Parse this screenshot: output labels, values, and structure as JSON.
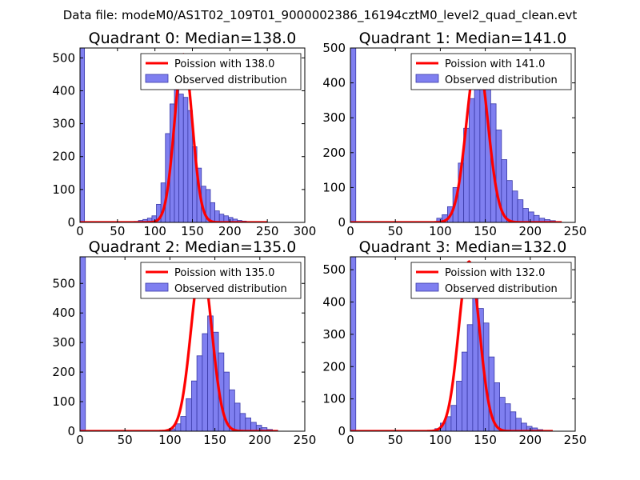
{
  "figure": {
    "suptitle": "Data file: modeM0/AS1T02_109T01_9000002386_16194cztM0_level2_quad_clean.evt"
  },
  "colors": {
    "bar_fill": "#7f7ff0",
    "bar_edge": "#3a3aa8",
    "fit_line": "#ff0000",
    "axes": "#000000"
  },
  "chart_data": [
    {
      "type": "bar",
      "title": "Quadrant 0: Median=138.0",
      "xlim": [
        0,
        300
      ],
      "ylim": [
        0,
        530
      ],
      "xticks": [
        0,
        50,
        100,
        150,
        200,
        250,
        300
      ],
      "yticks": [
        0,
        100,
        200,
        300,
        400,
        500
      ],
      "bin_width": 6,
      "bins": [
        [
          0,
          530
        ],
        [
          72,
          3
        ],
        [
          78,
          6
        ],
        [
          84,
          9
        ],
        [
          90,
          13
        ],
        [
          96,
          20
        ],
        [
          102,
          55
        ],
        [
          108,
          120
        ],
        [
          114,
          270
        ],
        [
          120,
          360
        ],
        [
          126,
          430
        ],
        [
          132,
          390
        ],
        [
          138,
          380
        ],
        [
          144,
          340
        ],
        [
          150,
          230
        ],
        [
          156,
          165
        ],
        [
          162,
          110
        ],
        [
          168,
          100
        ],
        [
          174,
          60
        ],
        [
          180,
          35
        ],
        [
          186,
          25
        ],
        [
          192,
          20
        ],
        [
          198,
          15
        ],
        [
          204,
          10
        ],
        [
          210,
          6
        ],
        [
          216,
          4
        ],
        [
          222,
          2
        ]
      ],
      "fit": {
        "label": "Poission with 138.0",
        "mean": 138.0,
        "peak": 510,
        "x_range": [
          0,
          250
        ]
      },
      "legend": {
        "line_label": "Poission with 138.0",
        "bar_label": "Observed distribution",
        "position": "top-right"
      }
    },
    {
      "type": "bar",
      "title": "Quadrant 1: Median=141.0",
      "xlim": [
        0,
        250
      ],
      "ylim": [
        0,
        500
      ],
      "xticks": [
        0,
        50,
        100,
        150,
        200,
        250
      ],
      "yticks": [
        0,
        100,
        200,
        300,
        400,
        500
      ],
      "bin_width": 6,
      "bins": [
        [
          0,
          500
        ],
        [
          96,
          12
        ],
        [
          102,
          22
        ],
        [
          108,
          45
        ],
        [
          114,
          100
        ],
        [
          120,
          170
        ],
        [
          126,
          270
        ],
        [
          132,
          355
        ],
        [
          138,
          435
        ],
        [
          144,
          470
        ],
        [
          150,
          400
        ],
        [
          156,
          340
        ],
        [
          162,
          265
        ],
        [
          168,
          180
        ],
        [
          174,
          120
        ],
        [
          180,
          90
        ],
        [
          186,
          65
        ],
        [
          192,
          40
        ],
        [
          198,
          30
        ],
        [
          204,
          20
        ],
        [
          210,
          12
        ],
        [
          216,
          8
        ],
        [
          222,
          5
        ],
        [
          228,
          2
        ]
      ],
      "fit": {
        "label": "Poission with 141.0",
        "mean": 141.0,
        "peak": 475,
        "x_range": [
          0,
          235
        ]
      },
      "legend": {
        "line_label": "Poission with 141.0",
        "bar_label": "Observed distribution",
        "position": "top-right"
      }
    },
    {
      "type": "bar",
      "title": "Quadrant 2: Median=135.0",
      "xlim": [
        0,
        250
      ],
      "ylim": [
        0,
        590
      ],
      "xticks": [
        0,
        50,
        100,
        150,
        200,
        250
      ],
      "yticks": [
        0,
        100,
        200,
        300,
        400,
        500
      ],
      "bin_width": 6,
      "bins": [
        [
          0,
          590
        ],
        [
          100,
          8
        ],
        [
          106,
          25
        ],
        [
          112,
          50
        ],
        [
          118,
          110
        ],
        [
          124,
          170
        ],
        [
          130,
          255
        ],
        [
          136,
          330
        ],
        [
          142,
          390
        ],
        [
          148,
          335
        ],
        [
          154,
          265
        ],
        [
          160,
          200
        ],
        [
          166,
          140
        ],
        [
          172,
          95
        ],
        [
          178,
          60
        ],
        [
          184,
          45
        ],
        [
          190,
          30
        ],
        [
          196,
          20
        ],
        [
          202,
          12
        ],
        [
          208,
          6
        ],
        [
          214,
          3
        ]
      ],
      "fit": {
        "label": "Poission with 135.0",
        "mean": 135.0,
        "peak": 565,
        "x_range": [
          0,
          220
        ]
      },
      "legend": {
        "line_label": "Poission with 135.0",
        "bar_label": "Observed distribution",
        "position": "top-right"
      }
    },
    {
      "type": "bar",
      "title": "Quadrant 3: Median=132.0",
      "xlim": [
        0,
        250
      ],
      "ylim": [
        0,
        540
      ],
      "xticks": [
        0,
        50,
        100,
        150,
        200,
        250
      ],
      "yticks": [
        0,
        100,
        200,
        300,
        400,
        500
      ],
      "bin_width": 6,
      "bins": [
        [
          0,
          540
        ],
        [
          94,
          8
        ],
        [
          100,
          25
        ],
        [
          106,
          45
        ],
        [
          112,
          80
        ],
        [
          118,
          155
        ],
        [
          124,
          245
        ],
        [
          130,
          330
        ],
        [
          136,
          420
        ],
        [
          142,
          380
        ],
        [
          148,
          335
        ],
        [
          154,
          230
        ],
        [
          160,
          150
        ],
        [
          166,
          105
        ],
        [
          172,
          85
        ],
        [
          178,
          60
        ],
        [
          184,
          40
        ],
        [
          190,
          25
        ],
        [
          196,
          15
        ],
        [
          202,
          10
        ],
        [
          208,
          5
        ],
        [
          214,
          2
        ]
      ],
      "fit": {
        "label": "Poission with 132.0",
        "mean": 132.0,
        "peak": 525,
        "x_range": [
          0,
          225
        ]
      },
      "legend": {
        "line_label": "Poission with 132.0",
        "bar_label": "Observed distribution",
        "position": "top-right"
      }
    }
  ]
}
